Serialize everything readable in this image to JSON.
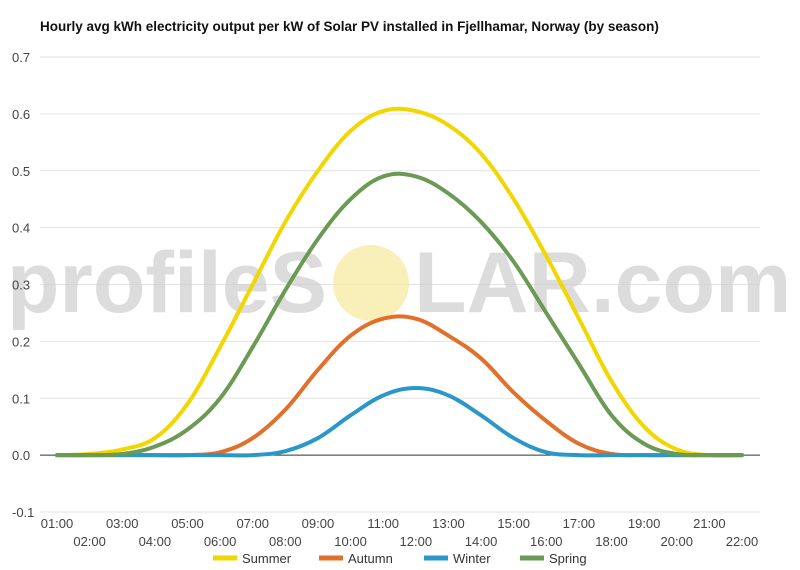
{
  "chart_data": {
    "type": "line",
    "title": "Hourly avg kWh electricity output per kW of Solar PV installed in Fjellhamar, Norway (by season)",
    "xlabel": "",
    "ylabel": "",
    "x": [
      "01:00",
      "02:00",
      "03:00",
      "04:00",
      "05:00",
      "06:00",
      "07:00",
      "08:00",
      "09:00",
      "10:00",
      "11:00",
      "12:00",
      "13:00",
      "14:00",
      "15:00",
      "16:00",
      "17:00",
      "18:00",
      "19:00",
      "20:00",
      "21:00",
      "22:00"
    ],
    "yticks": [
      "-0.1",
      "0.0",
      "0.1",
      "0.2",
      "0.3",
      "0.4",
      "0.5",
      "0.6",
      "0.7"
    ],
    "ylim": [
      -0.1,
      0.7
    ],
    "grid": true,
    "legend_position": "bottom",
    "series": [
      {
        "name": "Summer",
        "color": "#f2d600",
        "values": [
          0.0,
          0.002,
          0.01,
          0.03,
          0.09,
          0.19,
          0.3,
          0.41,
          0.5,
          0.57,
          0.605,
          0.605,
          0.58,
          0.53,
          0.45,
          0.35,
          0.24,
          0.13,
          0.05,
          0.01,
          0.0,
          0.0
        ]
      },
      {
        "name": "Autumn",
        "color": "#e0702a",
        "values": [
          0.0,
          0.0,
          0.0,
          0.0,
          0.0,
          0.005,
          0.03,
          0.08,
          0.15,
          0.21,
          0.24,
          0.24,
          0.21,
          0.17,
          0.11,
          0.06,
          0.02,
          0.002,
          0.0,
          0.0,
          0.0,
          0.0
        ]
      },
      {
        "name": "Winter",
        "color": "#2b97c8",
        "values": [
          0.0,
          0.0,
          0.0,
          0.0,
          0.0,
          0.0,
          0.0,
          0.007,
          0.03,
          0.07,
          0.105,
          0.118,
          0.105,
          0.07,
          0.03,
          0.005,
          0.0,
          0.0,
          0.0,
          0.0,
          0.0,
          0.0
        ]
      },
      {
        "name": "Spring",
        "color": "#6a9a54",
        "values": [
          0.0,
          0.0,
          0.002,
          0.015,
          0.045,
          0.1,
          0.19,
          0.29,
          0.38,
          0.45,
          0.49,
          0.49,
          0.46,
          0.41,
          0.34,
          0.25,
          0.16,
          0.07,
          0.02,
          0.002,
          0.0,
          0.0
        ]
      }
    ]
  },
  "watermark": {
    "text_before": "profileS",
    "text_after": "LAR.com",
    "sun_color": "#f7e9a0"
  }
}
